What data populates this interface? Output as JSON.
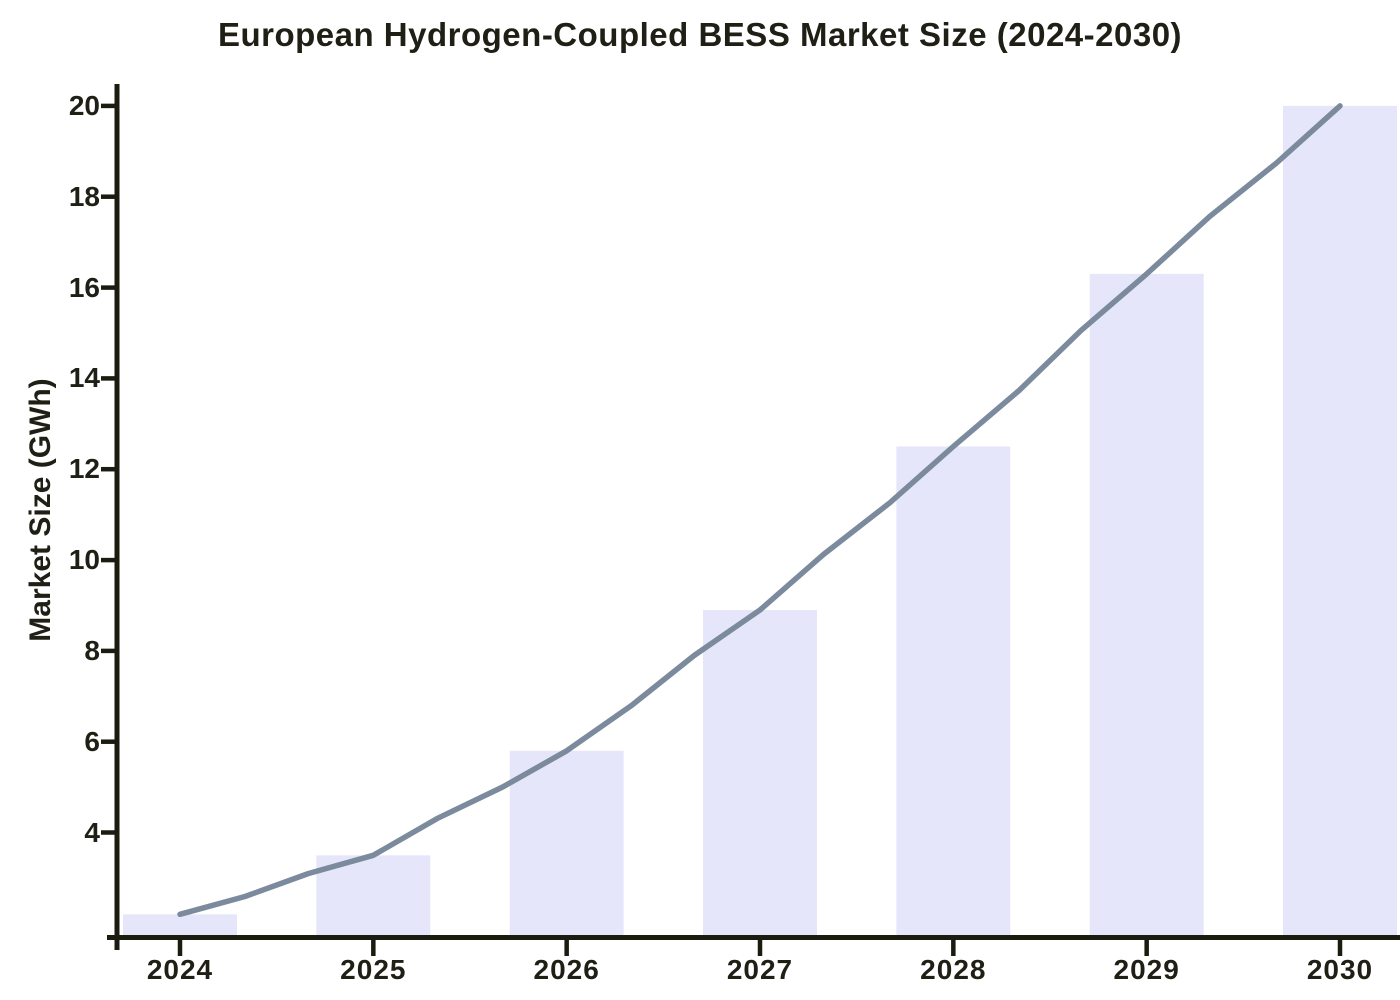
{
  "chart_data": {
    "type": "bar",
    "title": "European Hydrogen-Coupled BESS Market Size (2024-2030)",
    "xlabel": "",
    "ylabel": "Market Size (GWh)",
    "categories": [
      "2024",
      "2025",
      "2026",
      "2027",
      "2028",
      "2029",
      "2030"
    ],
    "series": [
      {
        "name": "market-size-bars",
        "type": "bar",
        "values": [
          2.2,
          3.5,
          5.8,
          8.9,
          12.5,
          16.3,
          20.0
        ]
      },
      {
        "name": "growth-trend-line",
        "type": "line",
        "values": [
          2.2,
          3.5,
          5.8,
          8.9,
          12.5,
          16.3,
          20.0
        ]
      }
    ],
    "yticks": [
      4,
      6,
      8,
      10,
      12,
      14,
      16,
      18,
      20
    ],
    "ylim": [
      1.7,
      20.35
    ],
    "grid": false,
    "legend": "none",
    "style": "xkcd-sketch",
    "colors": {
      "bar": "#e6e6fa",
      "line": "#7b8a9c",
      "axis": "#1b1b10",
      "text": "#1f1f16",
      "background": "#ffffff"
    }
  }
}
